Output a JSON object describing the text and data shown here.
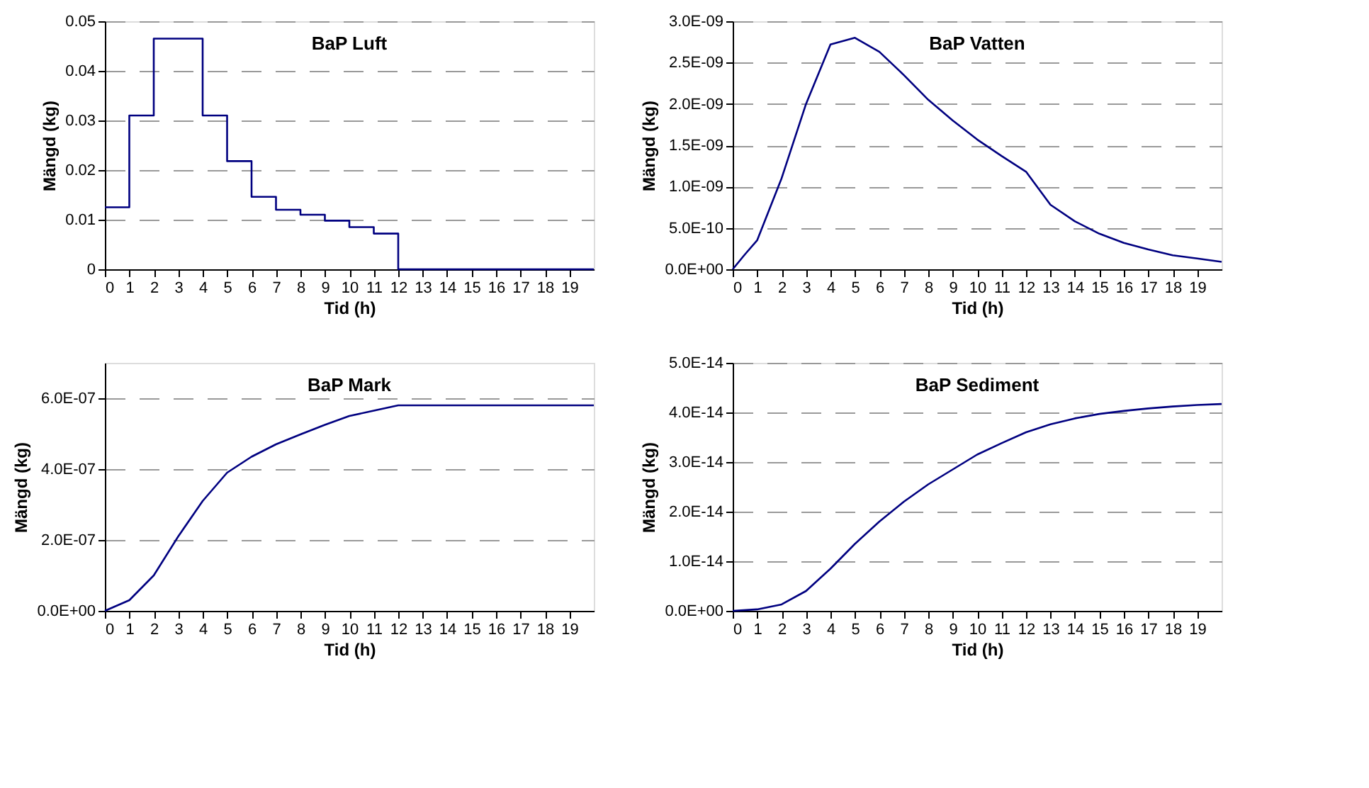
{
  "chart_data": [
    {
      "type": "step",
      "title": "BaP Luft",
      "xlabel": "Tid (h)",
      "ylabel": "Mängd (kg)",
      "x": [
        0,
        1,
        2,
        3,
        4,
        5,
        6,
        7,
        8,
        9,
        10,
        11,
        12,
        20
      ],
      "series": [
        {
          "color": "#000080",
          "values": [
            0.0125,
            0.031,
            0.0465,
            0.0465,
            0.031,
            0.0218,
            0.0146,
            0.012,
            0.011,
            0.0098,
            0.0085,
            0.0072,
            0,
            0
          ]
        }
      ],
      "xlim": [
        0,
        20
      ],
      "xticks": [
        0,
        1,
        2,
        3,
        4,
        5,
        6,
        7,
        8,
        9,
        10,
        11,
        12,
        13,
        14,
        15,
        16,
        17,
        18,
        19
      ],
      "ylim": [
        0,
        0.05
      ],
      "yticks": [
        0,
        0.01,
        0.02,
        0.03,
        0.04,
        0.05
      ],
      "grid": "y"
    },
    {
      "type": "line",
      "title": "BaP Vatten",
      "xlabel": "Tid (h)",
      "ylabel": "Mängd (kg)",
      "x": [
        0,
        0.5,
        1,
        2,
        3,
        4,
        5,
        6,
        7,
        8,
        9,
        10,
        11,
        12,
        13,
        14,
        15,
        16,
        17,
        18,
        19,
        20
      ],
      "series": [
        {
          "color": "#000080",
          "values": [
            0,
            1.8e-10,
            3.5e-10,
            1.1e-09,
            2e-09,
            2.72e-09,
            2.8e-09,
            2.63e-09,
            2.35e-09,
            2.05e-09,
            1.8e-09,
            1.57e-09,
            1.37e-09,
            1.18e-09,
            7.8e-10,
            5.8e-10,
            4.3e-10,
            3.2e-10,
            2.4e-10,
            1.7e-10,
            1.3e-10,
            9e-11
          ]
        }
      ],
      "xlim": [
        0,
        20
      ],
      "xticks": [
        0,
        1,
        2,
        3,
        4,
        5,
        6,
        7,
        8,
        9,
        10,
        11,
        12,
        13,
        14,
        15,
        16,
        17,
        18,
        19
      ],
      "ylim": [
        0,
        3e-09
      ],
      "yticks": [
        {
          "value": 0,
          "label": "0.0E+00"
        },
        {
          "value": 5e-10,
          "label": "5.0E-10"
        },
        {
          "value": 1e-09,
          "label": "1.0E-09"
        },
        {
          "value": 1.5e-09,
          "label": "1.5E-09"
        },
        {
          "value": 2e-09,
          "label": "2.0E-09"
        },
        {
          "value": 2.5e-09,
          "label": "2.5E-09"
        },
        {
          "value": 3e-09,
          "label": "3.0E-09"
        }
      ],
      "grid": "y"
    },
    {
      "type": "line",
      "title": "BaP Mark",
      "xlabel": "Tid (h)",
      "ylabel": "Mängd (kg)",
      "x": [
        0,
        1,
        2,
        3,
        4,
        5,
        6,
        7,
        8,
        9,
        10,
        11,
        12,
        20
      ],
      "series": [
        {
          "color": "#000080",
          "values": [
            0,
            3e-08,
            1e-07,
            2.1e-07,
            3.1e-07,
            3.9e-07,
            4.35e-07,
            4.7e-07,
            4.98e-07,
            5.25e-07,
            5.5e-07,
            5.65e-07,
            5.8e-07,
            5.8e-07
          ]
        }
      ],
      "xlim": [
        0,
        20
      ],
      "xticks": [
        0,
        1,
        2,
        3,
        4,
        5,
        6,
        7,
        8,
        9,
        10,
        11,
        12,
        13,
        14,
        15,
        16,
        17,
        18,
        19
      ],
      "ylim": [
        0,
        7e-07
      ],
      "yticks": [
        {
          "value": 0,
          "label": "0.0E+00"
        },
        {
          "value": 2e-07,
          "label": "2.0E-07"
        },
        {
          "value": 4e-07,
          "label": "4.0E-07"
        },
        {
          "value": 6e-07,
          "label": "6.0E-07"
        }
      ],
      "grid": "y"
    },
    {
      "type": "line",
      "title": "BaP Sediment",
      "xlabel": "Tid (h)",
      "ylabel": "Mängd (kg)",
      "x": [
        0,
        1,
        2,
        3,
        4,
        5,
        6,
        7,
        8,
        9,
        10,
        11,
        12,
        13,
        14,
        15,
        16,
        17,
        18,
        19,
        20
      ],
      "series": [
        {
          "color": "#000080",
          "values": [
            0,
            3e-16,
            1.3e-15,
            4e-15,
            8.5e-15,
            1.35e-14,
            1.8e-14,
            2.2e-14,
            2.55e-14,
            2.85e-14,
            3.15e-14,
            3.38e-14,
            3.6e-14,
            3.76e-14,
            3.88e-14,
            3.97e-14,
            4.03e-14,
            4.08e-14,
            4.12e-14,
            4.15e-14,
            4.17e-14
          ]
        }
      ],
      "xlim": [
        0,
        20
      ],
      "xticks": [
        0,
        1,
        2,
        3,
        4,
        5,
        6,
        7,
        8,
        9,
        10,
        11,
        12,
        13,
        14,
        15,
        16,
        17,
        18,
        19
      ],
      "ylim": [
        0,
        5e-14
      ],
      "yticks": [
        {
          "value": 0,
          "label": "0.0E+00"
        },
        {
          "value": 1e-14,
          "label": "1.0E-14"
        },
        {
          "value": 2e-14,
          "label": "2.0E-14"
        },
        {
          "value": 3e-14,
          "label": "3.0E-14"
        },
        {
          "value": 4e-14,
          "label": "4.0E-14"
        },
        {
          "value": 5e-14,
          "label": "5.0E-14"
        }
      ],
      "grid": "y"
    }
  ]
}
